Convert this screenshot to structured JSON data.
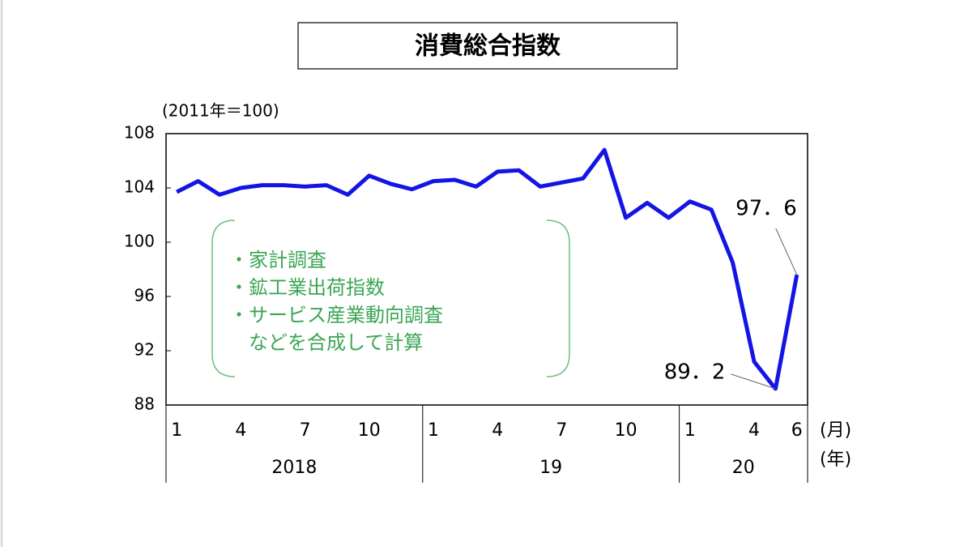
{
  "chart_data": {
    "type": "line",
    "title": "消費総合指数",
    "y_label": "(2011年＝100)",
    "x_unit_label": "(月)",
    "group_unit_label": "(年)",
    "categories": [
      "1",
      null,
      null,
      "4",
      null,
      null,
      "7",
      null,
      null,
      "10",
      null,
      null,
      "1",
      null,
      null,
      "4",
      null,
      null,
      "7",
      null,
      null,
      "10",
      null,
      null,
      "1",
      null,
      null,
      "4",
      null,
      "6"
    ],
    "groups": [
      {
        "label": "2018",
        "count": 12
      },
      {
        "label": "19",
        "count": 12
      },
      {
        "label": "20",
        "count": 6
      }
    ],
    "series": [
      {
        "color": "#1414e6",
        "values": [
          103.7,
          104.5,
          103.5,
          104.0,
          104.2,
          104.2,
          104.1,
          104.2,
          103.5,
          104.9,
          104.3,
          103.9,
          104.5,
          104.6,
          104.1,
          105.2,
          105.3,
          104.1,
          104.4,
          104.7,
          106.8,
          101.8,
          102.9,
          101.8,
          103.0,
          102.4,
          98.5,
          91.2,
          89.2,
          97.6
        ],
        "value_labels": [
          null,
          null,
          null,
          null,
          null,
          null,
          null,
          null,
          null,
          null,
          null,
          null,
          null,
          null,
          null,
          null,
          null,
          null,
          null,
          null,
          null,
          null,
          null,
          null,
          null,
          null,
          null,
          null,
          "89．2",
          "97．6"
        ]
      }
    ],
    "ylim": [
      88,
      108
    ],
    "yticks": [
      88,
      92,
      96,
      100,
      104,
      108
    ],
    "note": [
      "・家計調査",
      "・鉱工業出荷指数",
      "・サービス産業動向調査",
      "　などを合成して計算"
    ],
    "note_color": "#3aa655"
  }
}
